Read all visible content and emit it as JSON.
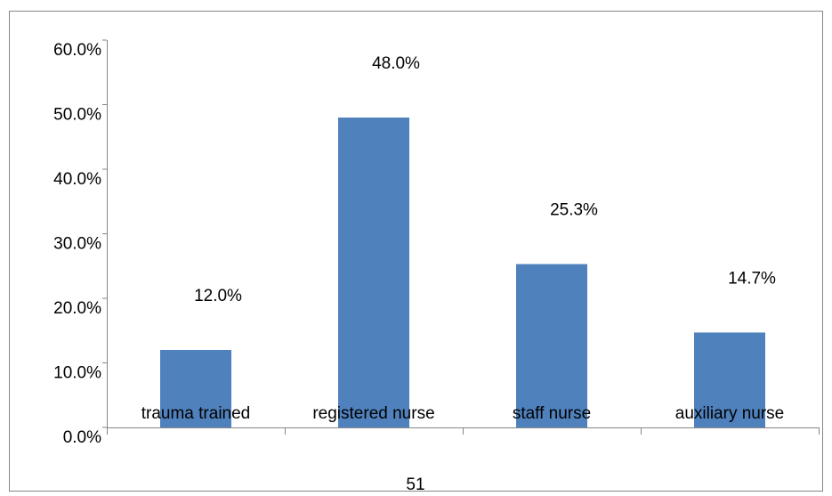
{
  "chart_data": {
    "type": "bar",
    "categories": [
      "trauma trained",
      "registered nurse",
      "staff nurse",
      "auxiliary nurse"
    ],
    "values": [
      12.0,
      48.0,
      25.3,
      14.7
    ],
    "value_labels": [
      "12.0%",
      "48.0%",
      "25.3%",
      "14.7%"
    ],
    "color": "#4f81bd",
    "ylim": [
      0,
      60
    ],
    "yticks": [
      {
        "value": 0,
        "label": "0.0%"
      },
      {
        "value": 10,
        "label": "10.0%"
      },
      {
        "value": 20,
        "label": "20.0%"
      },
      {
        "value": 30,
        "label": "30.0%"
      },
      {
        "value": 40,
        "label": "40.0%"
      },
      {
        "value": 50,
        "label": "50.0%"
      },
      {
        "value": 60,
        "label": "60.0%"
      }
    ],
    "grid": false
  },
  "page_number": "51"
}
